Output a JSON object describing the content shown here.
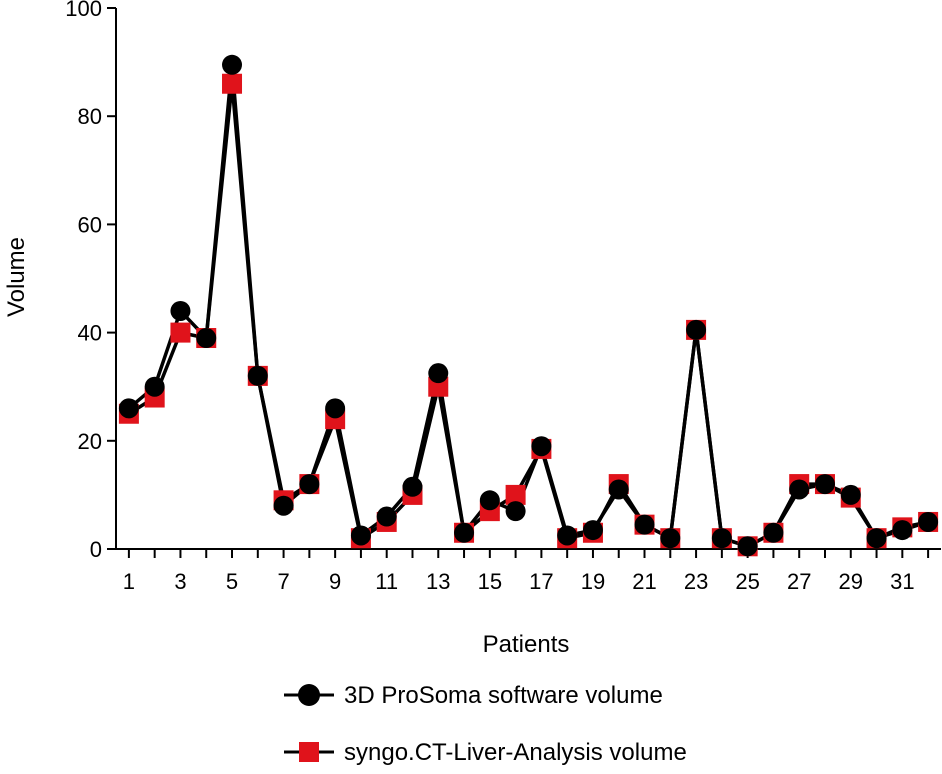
{
  "chart_data": {
    "type": "line",
    "title": "",
    "xlabel": "Patients",
    "ylabel": "Volume",
    "ylim": [
      0,
      100
    ],
    "xlim": [
      0.5,
      32.5
    ],
    "y_ticks": [
      0,
      20,
      40,
      60,
      80,
      100
    ],
    "x_tick_labels": [
      1,
      3,
      5,
      7,
      9,
      11,
      13,
      15,
      17,
      19,
      21,
      23,
      25,
      27,
      29,
      31
    ],
    "x": [
      1,
      2,
      3,
      4,
      5,
      6,
      7,
      8,
      9,
      10,
      11,
      12,
      13,
      14,
      15,
      16,
      17,
      18,
      19,
      20,
      21,
      22,
      23,
      24,
      25,
      26,
      27,
      28,
      29,
      30,
      31,
      32
    ],
    "grid": false,
    "legend_position": "bottom",
    "series": [
      {
        "name": "3D ProSoma software volume",
        "marker": "circle",
        "line_color": "#000000",
        "marker_color": "#000000",
        "values": [
          26,
          30,
          44,
          39,
          89.5,
          32,
          8,
          12,
          26,
          2.5,
          6,
          11.5,
          32.5,
          3,
          9,
          7,
          19,
          2.5,
          3.5,
          11,
          4.5,
          2,
          40.5,
          2,
          0.5,
          3,
          11,
          12,
          10,
          2,
          3.5,
          5
        ]
      },
      {
        "name": "syngo.CT-Liver-Analysis volume",
        "marker": "square",
        "line_color": "#000000",
        "marker_color": "#e0131b",
        "values": [
          25,
          28,
          40,
          39,
          86,
          32,
          9,
          12,
          24,
          2,
          5,
          10,
          30,
          3,
          7,
          10,
          18.5,
          2,
          3,
          12,
          4.5,
          2,
          40.5,
          2,
          0.5,
          3,
          12,
          12,
          9.5,
          2,
          4,
          5
        ]
      }
    ]
  }
}
